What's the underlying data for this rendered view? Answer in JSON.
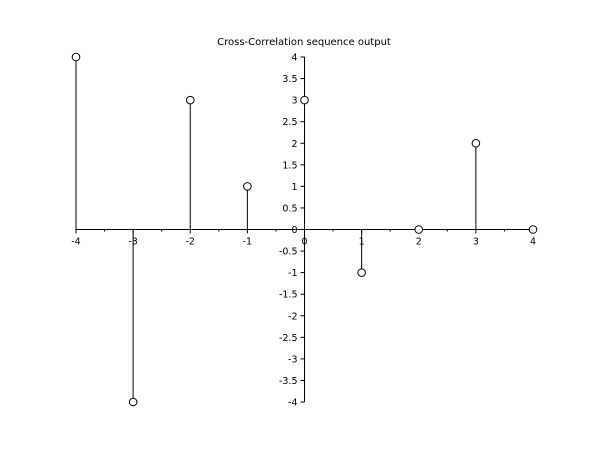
{
  "chart_data": {
    "type": "stem",
    "title": "Cross-Correlation sequence output",
    "xlabel": "",
    "ylabel": "",
    "xlim": [
      -4,
      4
    ],
    "ylim": [
      -4,
      4
    ],
    "x": [
      -4,
      -3,
      -2,
      -1,
      0,
      1,
      2,
      3,
      4
    ],
    "values": [
      4,
      -4,
      3,
      1,
      3,
      -1,
      0,
      2,
      0
    ],
    "x_ticks": [
      -4,
      -3,
      -2,
      -1,
      0,
      1,
      2,
      3,
      4
    ],
    "y_ticks": [
      -4,
      -3.5,
      -3,
      -2.5,
      -2,
      -1.5,
      -1,
      -0.5,
      0,
      0.5,
      1,
      1.5,
      2,
      2.5,
      3,
      3.5,
      4
    ],
    "grid": false,
    "axes_location": "origin",
    "marker": "open-circle",
    "line_color": "#000000",
    "marker_fill": "#ffffff"
  }
}
